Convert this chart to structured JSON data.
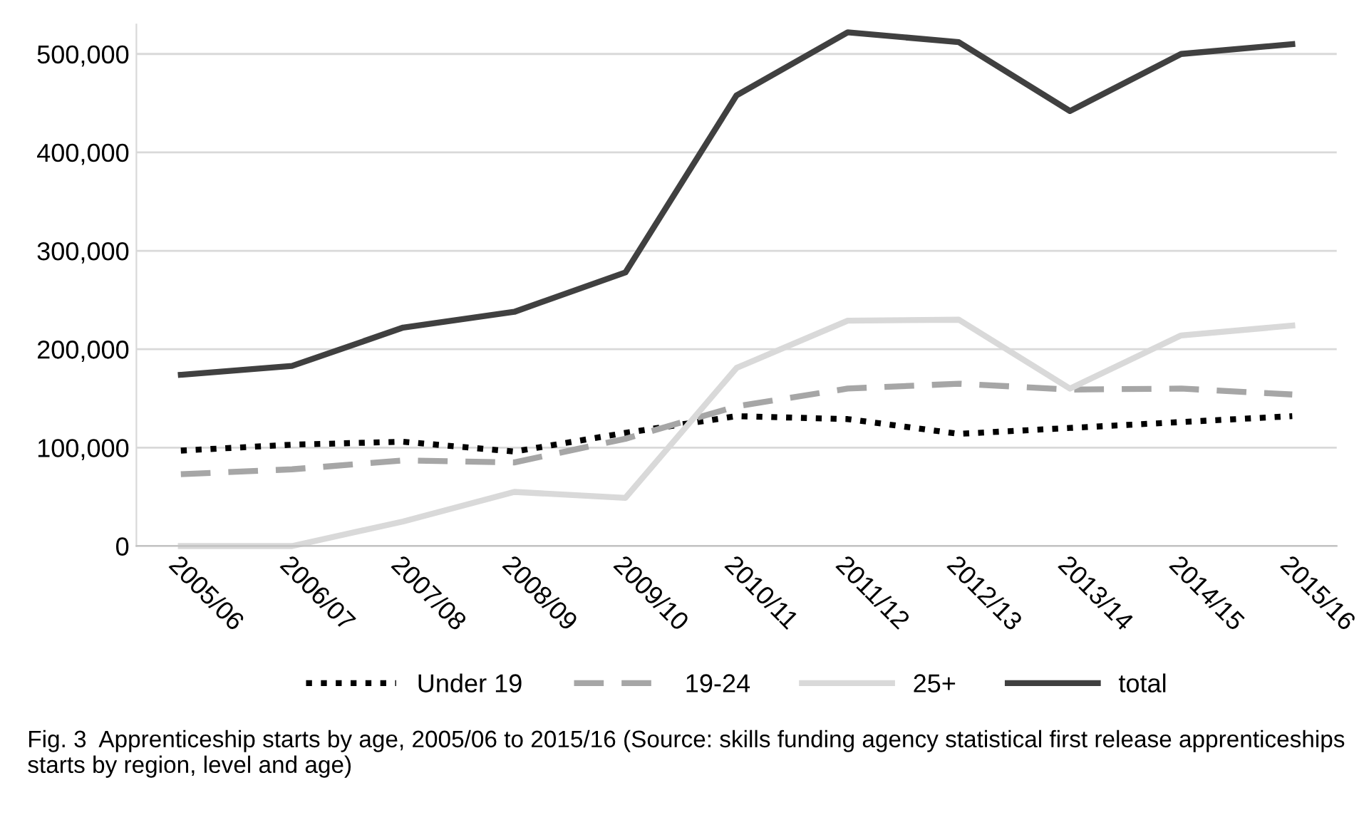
{
  "chart_data": {
    "type": "line",
    "categories": [
      "2005/06",
      "2006/07",
      "2007/08",
      "2008/09",
      "2009/10",
      "2010/11",
      "2011/12",
      "2012/13",
      "2013/14",
      "2014/15",
      "2015/16"
    ],
    "series": [
      {
        "name": "Under 19",
        "color": "#000000",
        "line_style": "dotted",
        "values": [
          97000,
          103000,
          106000,
          96000,
          115000,
          132000,
          129000,
          114000,
          120000,
          126000,
          132000
        ]
      },
      {
        "name": "19-24",
        "color": "#a6a6a6",
        "line_style": "dashed",
        "values": [
          73000,
          78000,
          87000,
          85000,
          109000,
          142000,
          160000,
          165000,
          159000,
          160000,
          154000
        ]
      },
      {
        "name": "25+",
        "color": "#d9d9d9",
        "line_style": "solid",
        "values": [
          0,
          0,
          25000,
          55000,
          49000,
          181000,
          229000,
          230000,
          160000,
          214000,
          224000
        ]
      },
      {
        "name": "total",
        "color": "#404040",
        "line_style": "solid",
        "values": [
          174000,
          183000,
          222000,
          238000,
          278000,
          458000,
          522000,
          512000,
          442000,
          500000,
          510000
        ]
      }
    ],
    "ylim": [
      0,
      530000
    ],
    "yticks": [
      {
        "value": 0,
        "label": "0"
      },
      {
        "value": 100000,
        "label": "100,000"
      },
      {
        "value": 200000,
        "label": "200,000"
      },
      {
        "value": 300000,
        "label": "300,000"
      },
      {
        "value": 400000,
        "label": "400,000"
      },
      {
        "value": 500000,
        "label": "500,000"
      }
    ],
    "grid": "y",
    "legend": "bottom",
    "annotations": [
      "Fig. 3  Apprenticeship starts by age, 2005/06 to 2015/16 (Source: skills funding agency statistical first release apprenticeships starts by region, level and age)"
    ]
  }
}
